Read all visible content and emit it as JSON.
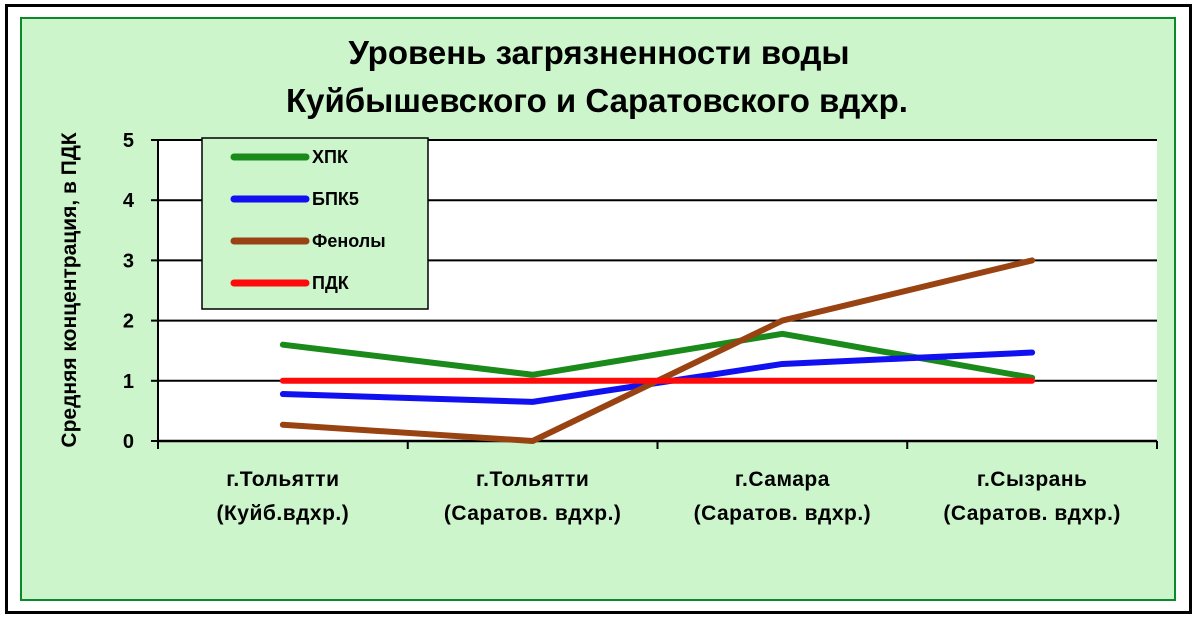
{
  "chart_data": {
    "type": "line",
    "title": [
      "Уровень загрязненности воды",
      "Куйбышевского и Саратовского вдхр."
    ],
    "ylabel": "Средняя концентрация, в ПДК",
    "xlabel": "",
    "ylim": [
      0,
      5
    ],
    "yticks": [
      "0",
      "1",
      "2",
      "3",
      "4",
      "5"
    ],
    "grid": true,
    "legend_position": "top-left",
    "categories": [
      [
        "г.Тольятти",
        "(Куйб.вдхр.)"
      ],
      [
        "г.Тольятти",
        "(Саратов. вдхр.)"
      ],
      [
        "г.Самара",
        "(Саратов. вдхр.)"
      ],
      [
        "г.Сызрань",
        "(Саратов. вдхр.)"
      ]
    ],
    "series": [
      {
        "name": "ХПК",
        "color": "#1a8a1a",
        "values": [
          1.6,
          1.1,
          1.78,
          1.05
        ]
      },
      {
        "name": "БПК5",
        "color": "#1010f0",
        "values": [
          0.78,
          0.65,
          1.28,
          1.47
        ]
      },
      {
        "name": "Фенолы",
        "color": "#9a4312",
        "values": [
          0.27,
          0.0,
          2.0,
          3.0
        ]
      },
      {
        "name": "ПДК",
        "color": "#ff0a0a",
        "values": [
          1.0,
          1.0,
          1.0,
          1.0
        ]
      }
    ]
  }
}
